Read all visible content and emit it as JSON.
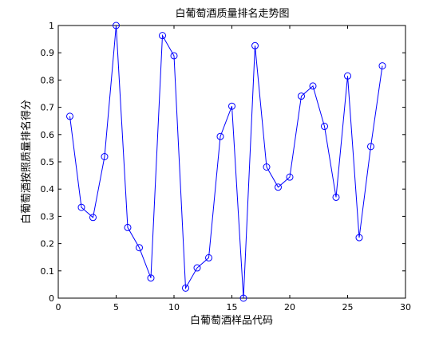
{
  "chart_data": {
    "type": "line",
    "title": "白葡萄酒质量排名走势图",
    "xlabel": "白葡萄酒样品代码",
    "ylabel": "白葡萄酒按照质量排名得分",
    "xlim": [
      0,
      30
    ],
    "ylim": [
      0,
      1
    ],
    "xticks": [
      0,
      5,
      10,
      15,
      20,
      25,
      30
    ],
    "yticks": [
      0,
      0.1,
      0.2,
      0.3,
      0.4,
      0.5,
      0.6,
      0.7,
      0.8,
      0.9,
      1
    ],
    "xtick_labels": [
      "0",
      "5",
      "10",
      "15",
      "20",
      "25",
      "30"
    ],
    "ytick_labels": [
      "0",
      "0.1",
      "0.2",
      "0.3",
      "0.4",
      "0.5",
      "0.6",
      "0.7",
      "0.8",
      "0.9",
      "1"
    ],
    "grid": false,
    "legend": false,
    "line_color": "#0000ff",
    "marker": "circle",
    "series": [
      {
        "x": [
          1,
          2,
          3,
          4,
          5,
          6,
          7,
          8,
          9,
          10,
          11,
          12,
          13,
          14,
          15,
          16,
          17,
          18,
          19,
          20,
          21,
          22,
          23,
          24,
          25,
          26,
          27,
          28
        ],
        "y": [
          0.667,
          0.333,
          0.296,
          0.519,
          1.0,
          0.259,
          0.185,
          0.074,
          0.963,
          0.889,
          0.037,
          0.111,
          0.148,
          0.593,
          0.704,
          0.0,
          0.926,
          0.481,
          0.407,
          0.444,
          0.741,
          0.778,
          0.63,
          0.37,
          0.815,
          0.222,
          0.556,
          0.852
        ]
      }
    ]
  }
}
